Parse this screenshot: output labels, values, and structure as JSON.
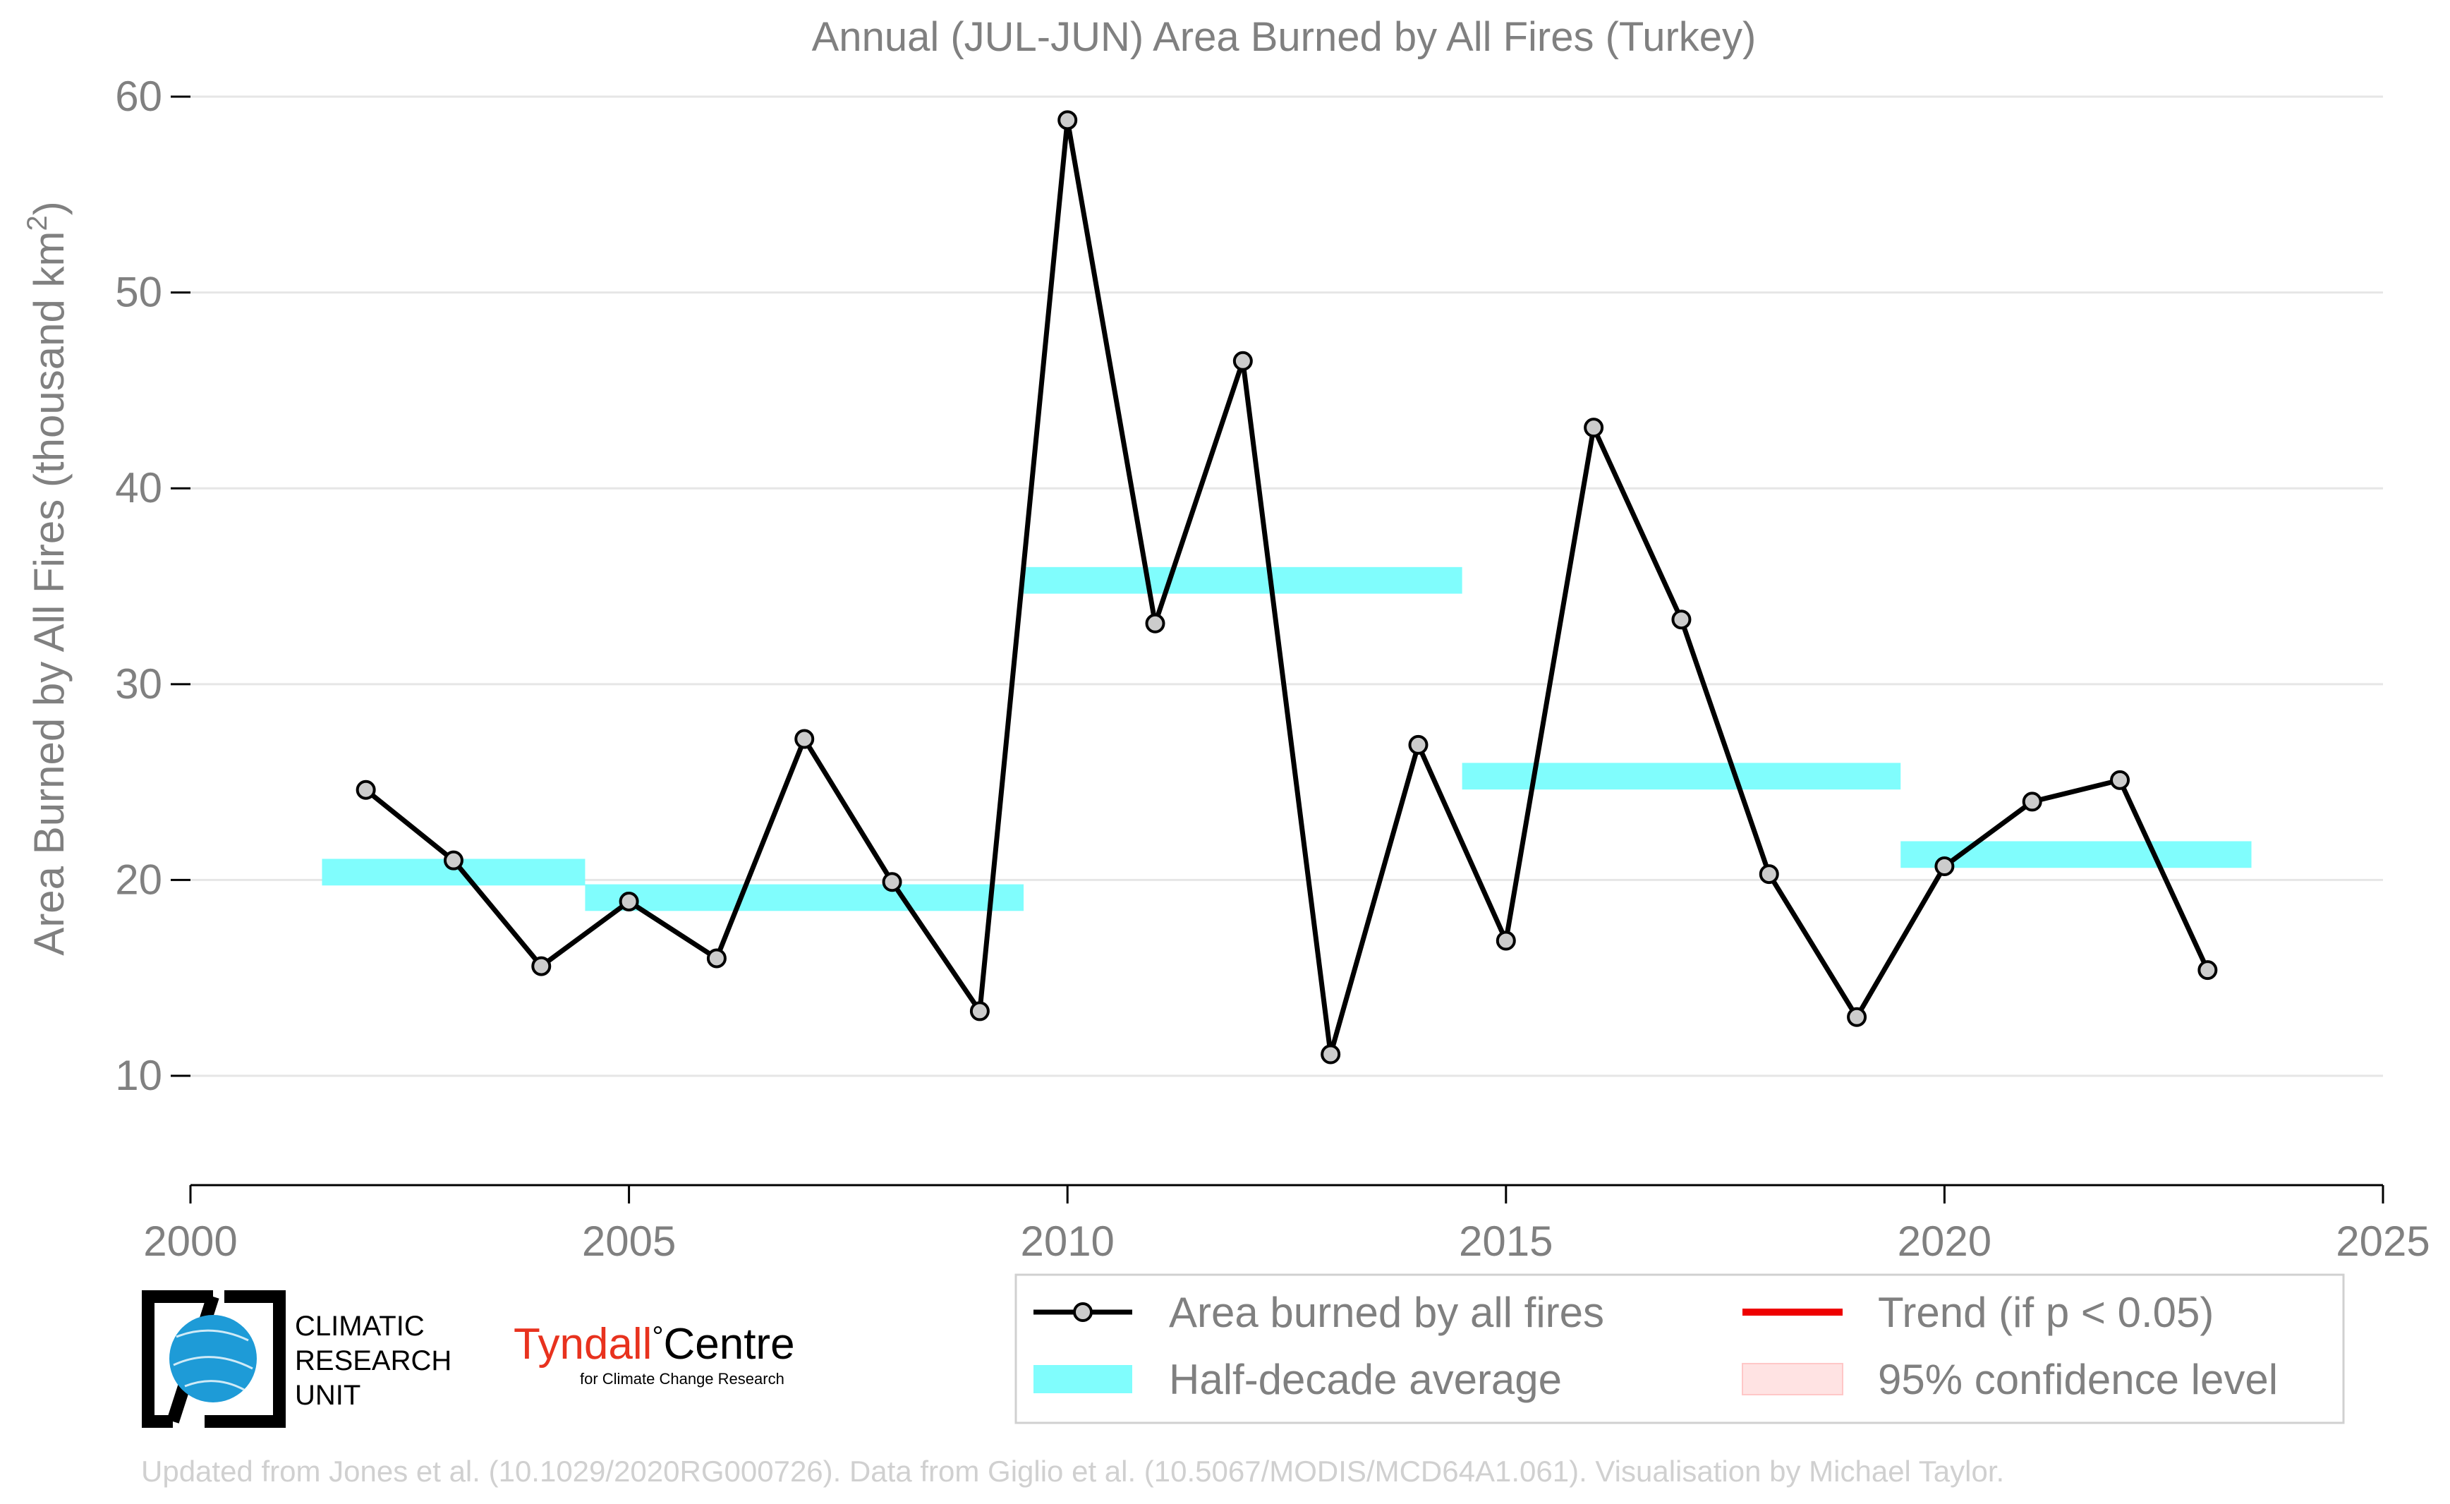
{
  "chart_data": {
    "type": "line",
    "title": "Annual (JUL-JUN) Area Burned by All Fires (Turkey)",
    "ylabel_main": "Area Burned by All Fires (thousand km",
    "ylabel_sup": "2",
    "ylabel_close": ")",
    "xlabel": "",
    "xlim": [
      2000,
      2025
    ],
    "ylim": [
      7.3,
      60
    ],
    "x_ticks": [
      2000,
      2005,
      2010,
      2015,
      2020,
      2025
    ],
    "y_ticks": [
      10,
      20,
      30,
      40,
      50,
      60
    ],
    "grid": "horizontal",
    "legend_position": "bottom-right",
    "series": [
      {
        "name": "Area burned by all fires",
        "color": "#000000",
        "marker_fill": "#cccccc",
        "x": [
          2002,
          2003,
          2004,
          2005,
          2006,
          2007,
          2008,
          2009,
          2010,
          2011,
          2012,
          2013,
          2014,
          2015,
          2016,
          2017,
          2018,
          2019,
          2020,
          2021,
          2022,
          2023
        ],
        "values": [
          24.6,
          21.0,
          15.6,
          18.9,
          16.0,
          27.2,
          19.9,
          13.3,
          58.8,
          33.1,
          46.5,
          11.1,
          26.9,
          16.9,
          43.1,
          33.3,
          20.3,
          13.0,
          20.7,
          24.0,
          25.1,
          15.4
        ]
      }
    ],
    "half_decade_averages": [
      {
        "x_start": 2001.5,
        "x_end": 2004.5,
        "value": 20.4
      },
      {
        "x_start": 2004.5,
        "x_end": 2009.5,
        "value": 19.1
      },
      {
        "x_start": 2009.5,
        "x_end": 2014.5,
        "value": 35.3
      },
      {
        "x_start": 2014.5,
        "x_end": 2019.5,
        "value": 25.3
      },
      {
        "x_start": 2019.5,
        "x_end": 2023.5,
        "value": 21.3
      }
    ],
    "legend": [
      {
        "label": "Area burned by all fires",
        "symbol": "line-marker",
        "color": "#000000"
      },
      {
        "label": "Trend (if p < 0.05)",
        "symbol": "line",
        "color": "#ee0000"
      },
      {
        "label": "Half-decade average",
        "symbol": "band",
        "color": "#7ffcfc"
      },
      {
        "label": "95% confidence level",
        "symbol": "band",
        "color": "#ffe3e3"
      }
    ],
    "colors": {
      "axis_text": "#808080",
      "grid": "#e6e6e6",
      "series": "#000000",
      "half_decade": "#80fdfd",
      "trend": "#ee0000",
      "confidence": "#ffdfdf",
      "caption": "#d0d0d0",
      "tyndall_red": "#e8321e",
      "cru_blue": "#1e9bd7"
    }
  },
  "logos": {
    "cru_line1": "CLIMATIC",
    "cru_line2": "RESEARCH",
    "cru_line3": "UNIT",
    "tyndall_name": "Tyndall",
    "tyndall_degree": "°",
    "tyndall_centre": "Centre",
    "tyndall_sub": "for Climate Change Research"
  },
  "caption": "Updated from Jones et al. (10.1029/2020RG000726). Data from Giglio et al. (10.5067/MODIS/MCD64A1.061). Visualisation by Michael Taylor."
}
